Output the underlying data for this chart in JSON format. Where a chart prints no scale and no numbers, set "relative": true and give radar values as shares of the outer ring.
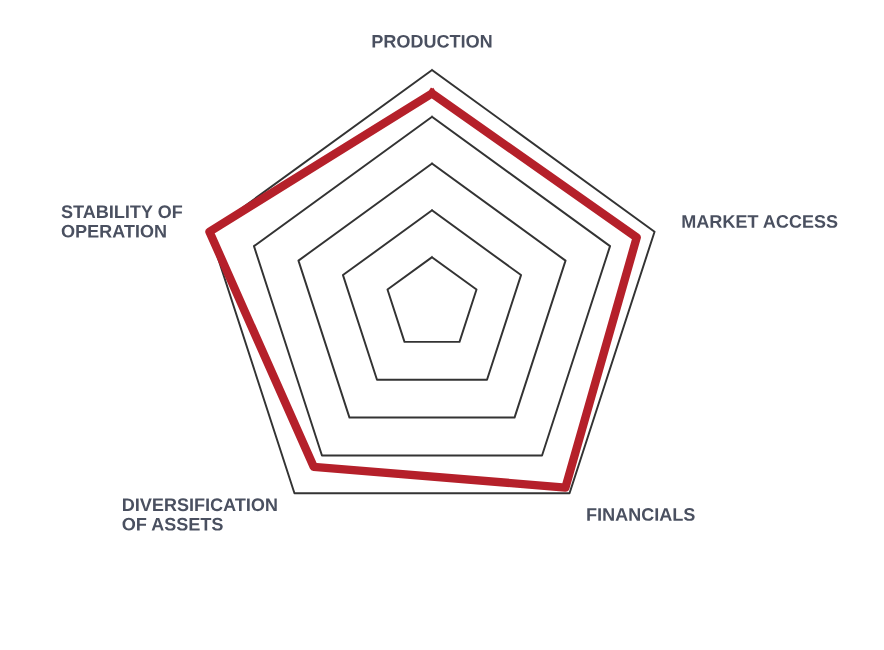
{
  "chart_data": {
    "type": "radar",
    "relative": true,
    "grid": true,
    "categories": [
      "PRODUCTION",
      "MARKET ACCESS",
      "FINANCIALS",
      "DIVERSIFICATION\nOF ASSETS",
      "STABILITY OF\nOPERATION"
    ],
    "series": [
      {
        "color": "#b5202a",
        "values": [
          0.9,
          0.92,
          0.97,
          0.86,
          1.0
        ]
      }
    ]
  }
}
